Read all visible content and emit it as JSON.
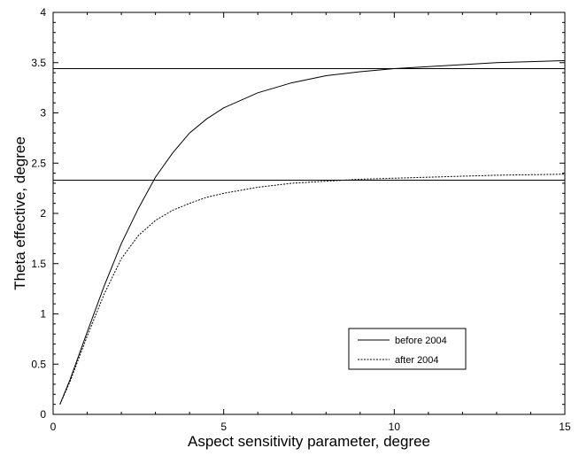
{
  "chart_data": {
    "type": "line",
    "title": "",
    "xlabel": "Aspect sensitivity parameter, degree",
    "ylabel": "Theta effective, degree",
    "xlim": [
      0,
      15
    ],
    "ylim": [
      0,
      4
    ],
    "xticks": [
      0,
      5,
      10,
      15
    ],
    "yticks": [
      0,
      0.5,
      1,
      1.5,
      2,
      2.5,
      3,
      3.5,
      4
    ],
    "grid": false,
    "legend_position": "lower-right",
    "series": [
      {
        "name": "before 2004",
        "style": "solid",
        "x": [
          0.2,
          0.5,
          1,
          1.5,
          2,
          2.5,
          3,
          3.5,
          4,
          4.5,
          5,
          6,
          7,
          8,
          9,
          10,
          11,
          12,
          13,
          14,
          15
        ],
        "y": [
          0.1,
          0.35,
          0.82,
          1.28,
          1.7,
          2.05,
          2.36,
          2.6,
          2.8,
          2.94,
          3.05,
          3.2,
          3.3,
          3.37,
          3.41,
          3.44,
          3.46,
          3.48,
          3.5,
          3.51,
          3.52
        ]
      },
      {
        "name": "after 2004",
        "style": "dashed",
        "x": [
          0.2,
          0.5,
          1,
          1.5,
          2,
          2.5,
          3,
          3.5,
          4,
          4.5,
          5,
          6,
          7,
          8,
          9,
          10,
          11,
          12,
          13,
          14,
          15
        ],
        "y": [
          0.1,
          0.33,
          0.78,
          1.2,
          1.55,
          1.78,
          1.93,
          2.03,
          2.1,
          2.16,
          2.2,
          2.26,
          2.3,
          2.32,
          2.34,
          2.35,
          2.36,
          2.37,
          2.38,
          2.385,
          2.39
        ]
      }
    ],
    "reference_lines": [
      {
        "y": 3.44
      },
      {
        "y": 2.33
      }
    ],
    "colors": {
      "line": "#000000",
      "axes": "#000000",
      "background": "#ffffff"
    }
  }
}
